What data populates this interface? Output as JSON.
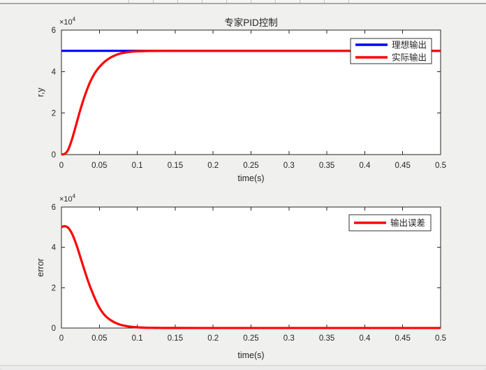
{
  "colors": {
    "figure_background": "#f0f0ee",
    "plot_background": "#ffffff",
    "axis": "#262626",
    "ideal_line": "#0000ff",
    "actual_line": "#ff0000",
    "error_line": "#ff0000"
  },
  "chart_data": [
    {
      "type": "line",
      "title": "专家PID控制",
      "xlabel": "time(s)",
      "ylabel": "r,y",
      "xlim": [
        0,
        0.5
      ],
      "ylim": [
        0,
        60000
      ],
      "grid": false,
      "legend_position": "top-right-inside",
      "y_exponent": {
        "base": "×10",
        "sup": "4"
      },
      "x_ticks": {
        "values": [
          0,
          0.05,
          0.1,
          0.15,
          0.2,
          0.25,
          0.3,
          0.35,
          0.4,
          0.45,
          0.5
        ],
        "labels": [
          "0",
          "0.05",
          "0.1",
          "0.15",
          "0.2",
          "0.25",
          "0.3",
          "0.35",
          "0.4",
          "0.45",
          "0.5"
        ]
      },
      "y_ticks": {
        "values": [
          0,
          20000,
          40000,
          60000
        ],
        "labels": [
          "0",
          "2",
          "4",
          "6"
        ]
      },
      "series": [
        {
          "name": "理想输出",
          "color": "#0000ff",
          "points": [
            [
              0,
              50000
            ],
            [
              0.5,
              50000
            ]
          ]
        },
        {
          "name": "实际输出",
          "color": "#ff0000",
          "points": [
            [
              0,
              0
            ],
            [
              0.002,
              100
            ],
            [
              0.004,
              350
            ],
            [
              0.006,
              800
            ],
            [
              0.008,
              1800
            ],
            [
              0.01,
              3300
            ],
            [
              0.0125,
              5800
            ],
            [
              0.015,
              8700
            ],
            [
              0.0175,
              11900
            ],
            [
              0.02,
              15200
            ],
            [
              0.0225,
              18500
            ],
            [
              0.025,
              21700
            ],
            [
              0.0275,
              24700
            ],
            [
              0.03,
              27500
            ],
            [
              0.0325,
              30100
            ],
            [
              0.035,
              32500
            ],
            [
              0.0375,
              34700
            ],
            [
              0.04,
              36600
            ],
            [
              0.045,
              39800
            ],
            [
              0.05,
              42200
            ],
            [
              0.055,
              44100
            ],
            [
              0.06,
              45600
            ],
            [
              0.065,
              46800
            ],
            [
              0.07,
              47700
            ],
            [
              0.075,
              48400
            ],
            [
              0.08,
              48900
            ],
            [
              0.09,
              49500
            ],
            [
              0.1,
              49750
            ],
            [
              0.11,
              49880
            ],
            [
              0.12,
              49950
            ],
            [
              0.13,
              50000
            ],
            [
              0.15,
              50000
            ],
            [
              0.2,
              50000
            ],
            [
              0.25,
              50000
            ],
            [
              0.3,
              50000
            ],
            [
              0.35,
              50000
            ],
            [
              0.4,
              50000
            ],
            [
              0.45,
              50000
            ],
            [
              0.5,
              50000
            ]
          ]
        }
      ]
    },
    {
      "type": "line",
      "title": "",
      "xlabel": "time(s)",
      "ylabel": "error",
      "xlim": [
        0,
        0.5
      ],
      "ylim": [
        0,
        60000
      ],
      "grid": false,
      "legend_position": "top-right-inside",
      "y_exponent": {
        "base": "×10",
        "sup": "4"
      },
      "x_ticks": {
        "values": [
          0,
          0.05,
          0.1,
          0.15,
          0.2,
          0.25,
          0.3,
          0.35,
          0.4,
          0.45,
          0.5
        ],
        "labels": [
          "0",
          "0.05",
          "0.1",
          "0.15",
          "0.2",
          "0.25",
          "0.3",
          "0.35",
          "0.4",
          "0.45",
          "0.5"
        ]
      },
      "y_ticks": {
        "values": [
          0,
          20000,
          40000,
          60000
        ],
        "labels": [
          "0",
          "2",
          "4",
          "6"
        ]
      },
      "series": [
        {
          "name": "输出误差",
          "color": "#ff0000",
          "points": [
            [
              0,
              50000
            ],
            [
              0.002,
              50350
            ],
            [
              0.004,
              50500
            ],
            [
              0.006,
              50350
            ],
            [
              0.008,
              50000
            ],
            [
              0.01,
              49200
            ],
            [
              0.0125,
              47800
            ],
            [
              0.015,
              45900
            ],
            [
              0.0175,
              43600
            ],
            [
              0.02,
              41000
            ],
            [
              0.0225,
              38100
            ],
            [
              0.025,
              35100
            ],
            [
              0.0275,
              32100
            ],
            [
              0.03,
              29100
            ],
            [
              0.0325,
              26200
            ],
            [
              0.035,
              23400
            ],
            [
              0.0375,
              20800
            ],
            [
              0.04,
              18400
            ],
            [
              0.045,
              13900
            ],
            [
              0.05,
              10100
            ],
            [
              0.055,
              7300
            ],
            [
              0.06,
              5300
            ],
            [
              0.065,
              3900
            ],
            [
              0.07,
              2800
            ],
            [
              0.075,
              2000
            ],
            [
              0.08,
              1400
            ],
            [
              0.09,
              700
            ],
            [
              0.1,
              350
            ],
            [
              0.11,
              180
            ],
            [
              0.12,
              100
            ],
            [
              0.13,
              60
            ],
            [
              0.15,
              30
            ],
            [
              0.2,
              20
            ],
            [
              0.25,
              20
            ],
            [
              0.3,
              20
            ],
            [
              0.35,
              20
            ],
            [
              0.4,
              20
            ],
            [
              0.45,
              20
            ],
            [
              0.5,
              20
            ]
          ]
        }
      ]
    }
  ]
}
